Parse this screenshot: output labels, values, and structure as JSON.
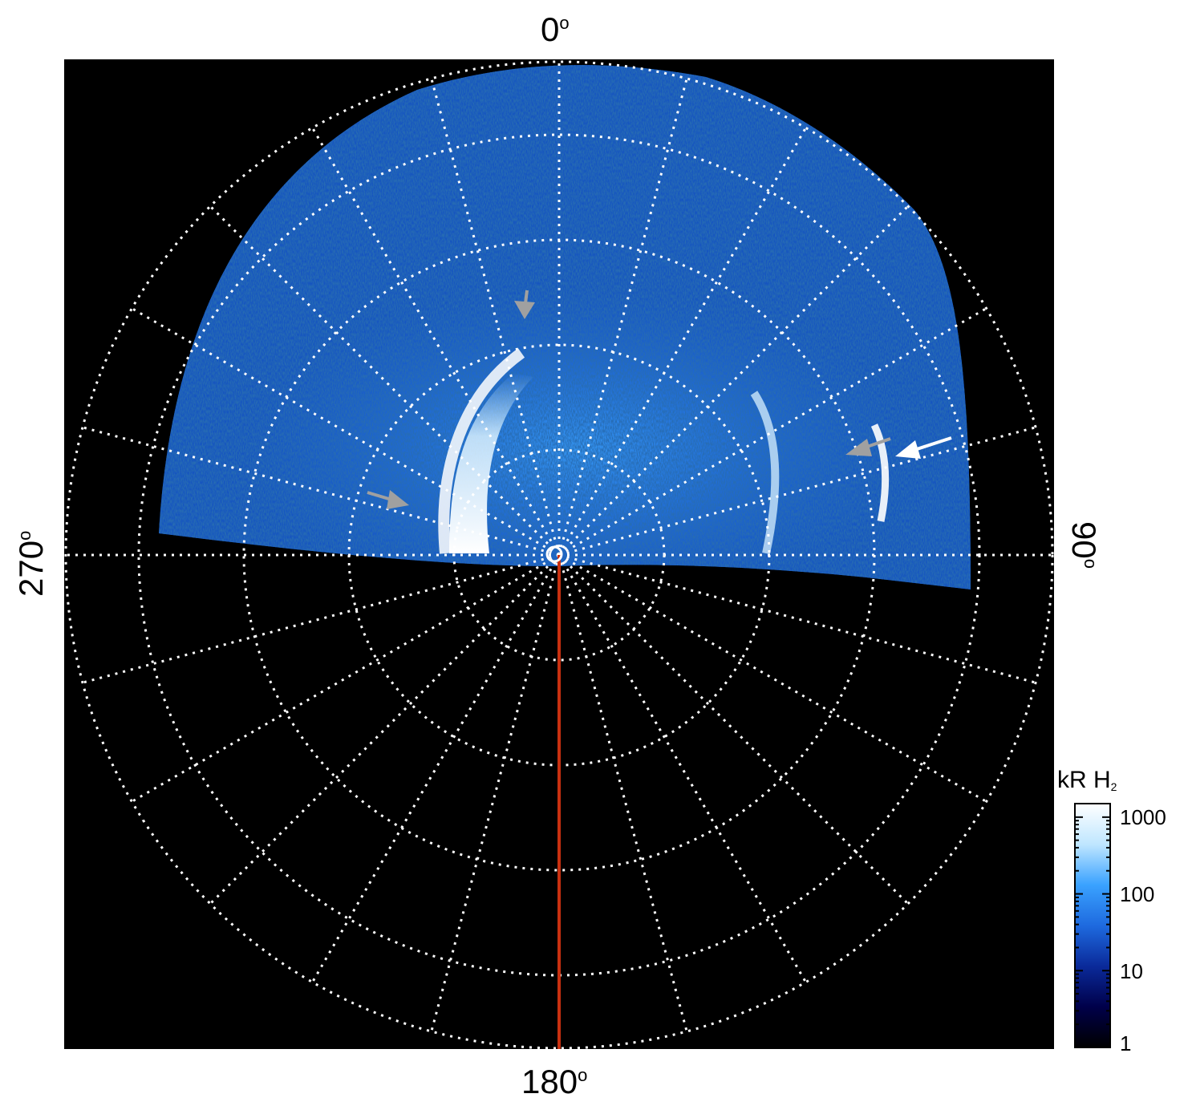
{
  "axis_labels": {
    "top": "0",
    "right": "90",
    "bottom": "180",
    "left": "270",
    "degree_symbol": "o"
  },
  "colorbar": {
    "title": "kR H",
    "title_subscript": "2",
    "scale": "log",
    "ticks": [
      "1000",
      "100",
      "10",
      "1"
    ],
    "range": [
      1,
      1500
    ],
    "colors": [
      "#000000",
      "#00004a",
      "#0a2a9a",
      "#1e6adf",
      "#3aa2ff",
      "#bfe6ff",
      "#ffffff"
    ]
  },
  "plot": {
    "background": "#000000",
    "grid_color": "#ffffff",
    "meridian_color": "#c83010",
    "emission_color": "#1e6adf",
    "arrow_colors": [
      "#a0a0a0",
      "#ffffff"
    ]
  }
}
